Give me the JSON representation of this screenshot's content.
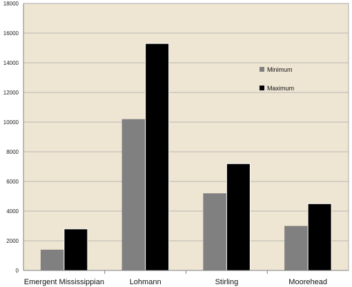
{
  "chart_data": {
    "type": "bar",
    "title": "",
    "xlabel": "",
    "ylabel": "",
    "categories": [
      "Emergent Mississippian",
      "Lohmann",
      "Stirling",
      "Moorehead"
    ],
    "series": [
      {
        "name": "Minimum",
        "values": [
          1400,
          10200,
          5200,
          3000
        ],
        "color": "#808080"
      },
      {
        "name": "Maximum",
        "values": [
          2800,
          15300,
          7200,
          4500
        ],
        "color": "#000000"
      }
    ],
    "ylim": [
      0,
      18000
    ],
    "yticks": [
      0,
      2000,
      4000,
      6000,
      8000,
      10000,
      12000,
      14000,
      16000,
      18000
    ],
    "grid": true,
    "legend": "right",
    "plot_background": "#eee5d3",
    "gridline_color": "#a8a8a8"
  }
}
